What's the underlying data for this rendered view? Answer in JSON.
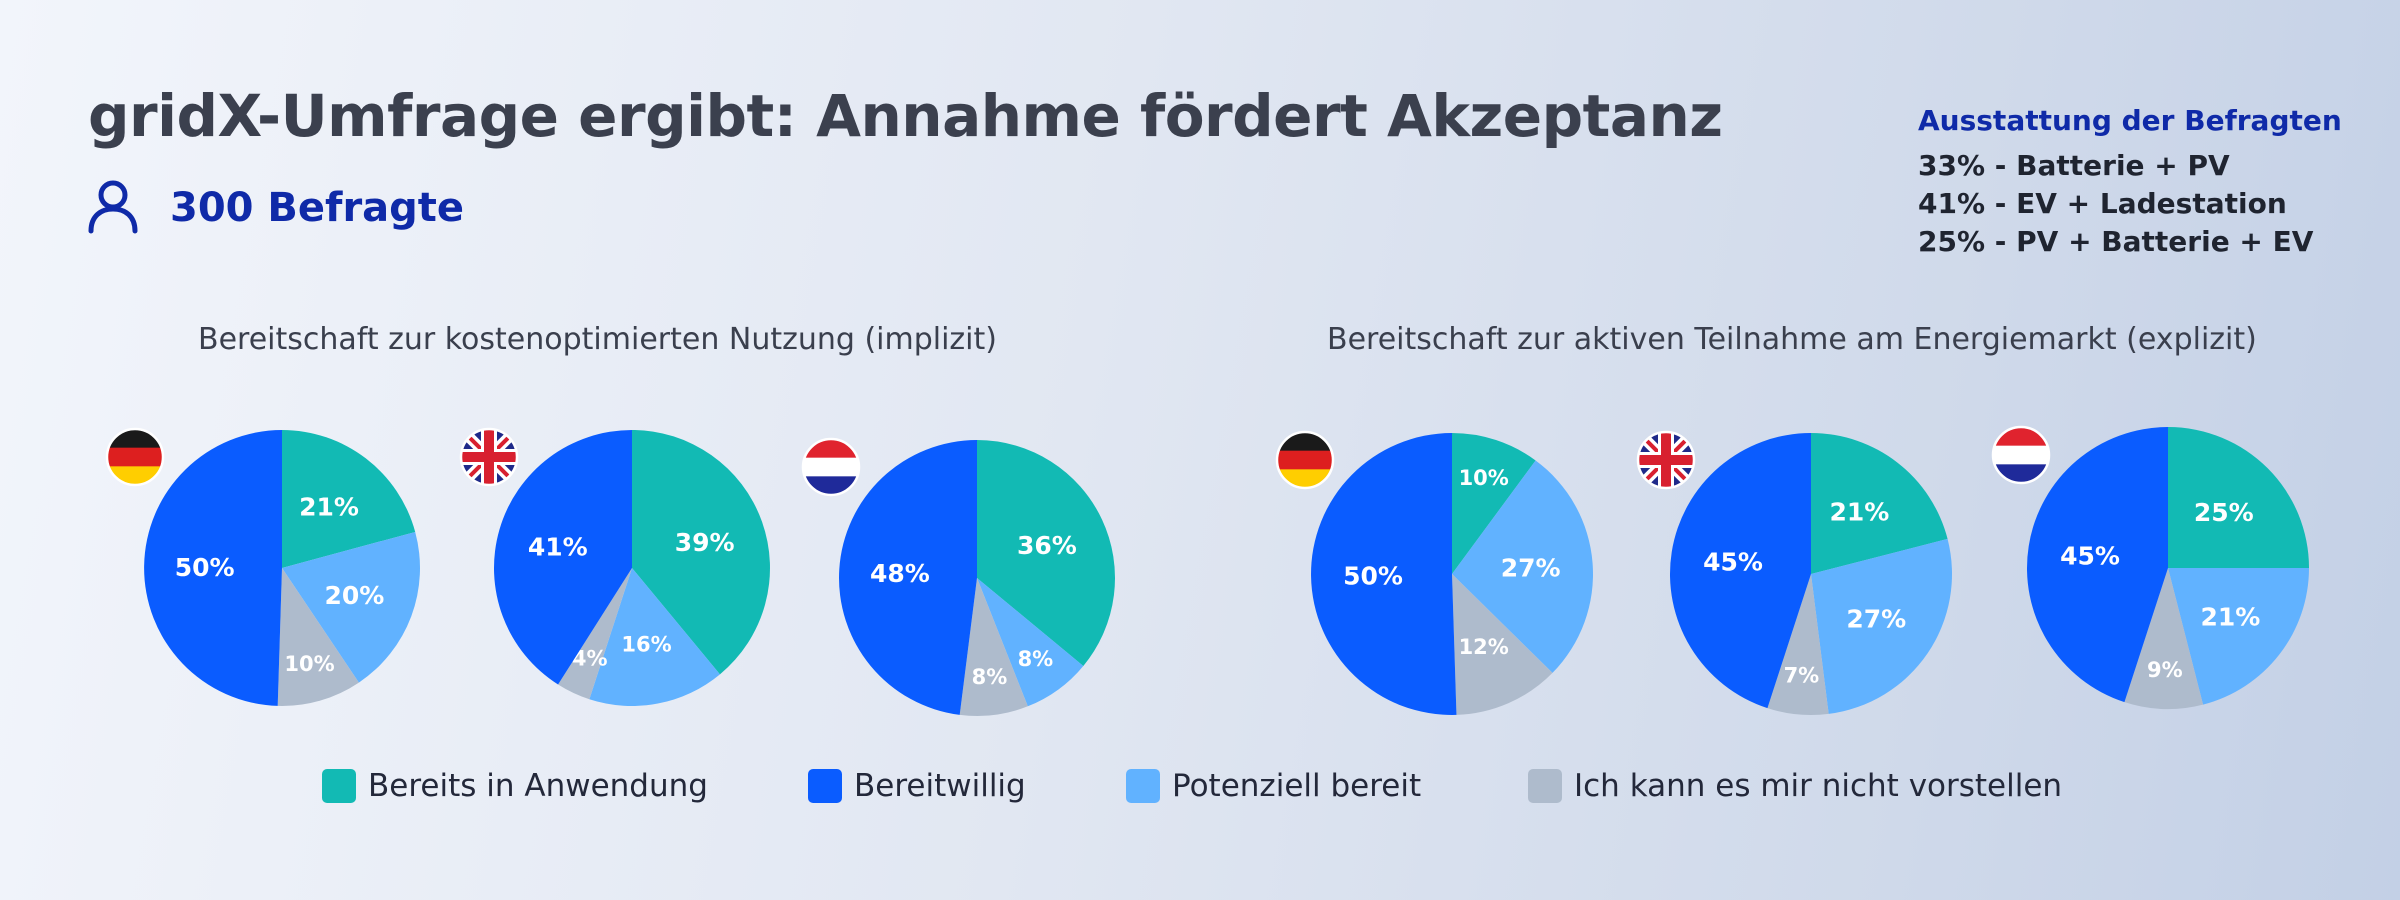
{
  "header": {
    "title": "gridX-Umfrage ergibt: Annahme fördert Akzeptanz",
    "respondents": "300 Befragte",
    "respondents_icon": "person-icon"
  },
  "equipment": {
    "heading": "Ausstattung der Befragten",
    "lines": [
      "33% - Batterie + PV",
      "41% - EV + Ladestation",
      "25% - PV + Batterie + EV"
    ]
  },
  "colors": {
    "bereits": "#12bab4",
    "bereitwillig": "#0a5cff",
    "potenziell": "#61b2ff",
    "nicht": "#aebbcc",
    "accent": "#0f2aa8"
  },
  "legend": [
    {
      "key": "bereits",
      "label": "Bereits in Anwendung"
    },
    {
      "key": "bereitwillig",
      "label": "Bereitwillig"
    },
    {
      "key": "potenziell",
      "label": "Potenziell bereit"
    },
    {
      "key": "nicht",
      "label": "Ich kann es mir nicht vorstellen"
    }
  ],
  "chart_data": [
    {
      "type": "pie",
      "title": "Bereitschaft zur kostenoptimierten Nutzung (implizit)",
      "country": "Deutschland",
      "flag_icon": "germany-flag-icon",
      "slices": [
        {
          "key": "bereits",
          "value": 21,
          "label": "21%"
        },
        {
          "key": "potenziell",
          "value": 20,
          "label": "20%"
        },
        {
          "key": "nicht",
          "value": 10,
          "label": "10%"
        },
        {
          "key": "bereitwillig",
          "value": 50,
          "label": "50%"
        }
      ]
    },
    {
      "type": "pie",
      "title": "Bereitschaft zur kostenoptimierten Nutzung (implizit)",
      "country": "Vereinigtes Königreich",
      "flag_icon": "uk-flag-icon",
      "slices": [
        {
          "key": "bereits",
          "value": 39,
          "label": "39%"
        },
        {
          "key": "potenziell",
          "value": 16,
          "label": "16%"
        },
        {
          "key": "nicht",
          "value": 4,
          "label": "4%"
        },
        {
          "key": "bereitwillig",
          "value": 41,
          "label": "41%"
        }
      ]
    },
    {
      "type": "pie",
      "title": "Bereitschaft zur kostenoptimierten Nutzung (implizit)",
      "country": "Niederlande",
      "flag_icon": "netherlands-flag-icon",
      "slices": [
        {
          "key": "bereits",
          "value": 36,
          "label": "36%"
        },
        {
          "key": "potenziell",
          "value": 8,
          "label": "8%"
        },
        {
          "key": "nicht",
          "value": 8,
          "label": "8%"
        },
        {
          "key": "bereitwillig",
          "value": 48,
          "label": "48%"
        }
      ]
    },
    {
      "type": "pie",
      "title": "Bereitschaft zur aktiven Teilnahme am Energiemarkt (explizit)",
      "country": "Deutschland",
      "flag_icon": "germany-flag-icon",
      "slices": [
        {
          "key": "bereits",
          "value": 10,
          "label": "10%"
        },
        {
          "key": "potenziell",
          "value": 27,
          "label": "27%"
        },
        {
          "key": "nicht",
          "value": 12,
          "label": "12%"
        },
        {
          "key": "bereitwillig",
          "value": 50,
          "label": "50%"
        }
      ]
    },
    {
      "type": "pie",
      "title": "Bereitschaft zur aktiven Teilnahme am Energiemarkt (explizit)",
      "country": "Vereinigtes Königreich",
      "flag_icon": "uk-flag-icon",
      "slices": [
        {
          "key": "bereits",
          "value": 21,
          "label": "21%"
        },
        {
          "key": "potenziell",
          "value": 27,
          "label": "27%"
        },
        {
          "key": "nicht",
          "value": 7,
          "label": "7%"
        },
        {
          "key": "bereitwillig",
          "value": 45,
          "label": "45%"
        }
      ]
    },
    {
      "type": "pie",
      "title": "Bereitschaft zur aktiven Teilnahme am Energiemarkt (explizit)",
      "country": "Niederlande",
      "flag_icon": "netherlands-flag-icon",
      "slices": [
        {
          "key": "bereits",
          "value": 25,
          "label": "25%"
        },
        {
          "key": "potenziell",
          "value": 21,
          "label": "21%"
        },
        {
          "key": "nicht",
          "value": 9,
          "label": "9%"
        },
        {
          "key": "bereitwillig",
          "value": 45,
          "label": "45%"
        }
      ]
    }
  ]
}
